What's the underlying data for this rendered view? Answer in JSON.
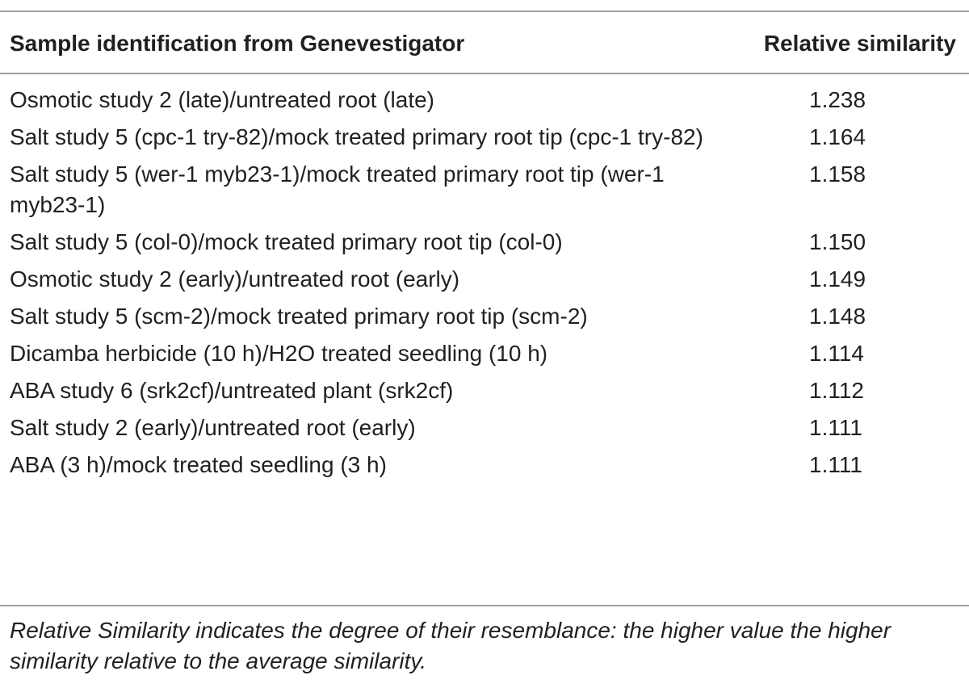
{
  "table": {
    "headers": {
      "sample": "Sample identification from Genevestigator",
      "similarity": "Relative similarity"
    },
    "rows": [
      {
        "sample": "Osmotic study 2 (late)/untreated root (late)",
        "similarity": "1.238"
      },
      {
        "sample": "Salt study 5 (cpc-1 try-82)/mock treated primary root tip (cpc-1 try-82)",
        "similarity": "1.164"
      },
      {
        "sample": "Salt study 5 (wer-1 myb23-1)/mock treated primary root tip (wer-1 myb23-1)",
        "similarity": "1.158"
      },
      {
        "sample": "Salt study 5 (col-0)/mock treated primary root tip (col-0)",
        "similarity": "1.150"
      },
      {
        "sample": "Osmotic study 2 (early)/untreated root (early)",
        "similarity": "1.149"
      },
      {
        "sample": "Salt study 5 (scm-2)/mock treated primary root tip (scm-2)",
        "similarity": "1.148"
      },
      {
        "sample": "Dicamba herbicide (10 h)/H2O treated seedling (10 h)",
        "similarity": "1.114"
      },
      {
        "sample": "ABA study 6 (srk2cf)/untreated plant (srk2cf)",
        "similarity": "1.112"
      },
      {
        "sample": "Salt study 2 (early)/untreated root (early)",
        "similarity": "1.111"
      },
      {
        "sample": "ABA (3 h)/mock treated seedling (3 h)",
        "similarity": "1.111"
      }
    ],
    "footnote": "Relative Similarity indicates the degree of their resemblance: the higher value the higher similarity relative to the average similarity."
  },
  "colors": {
    "text": "#231f20",
    "rule": "#9e9e9e",
    "background": "#ffffff"
  }
}
